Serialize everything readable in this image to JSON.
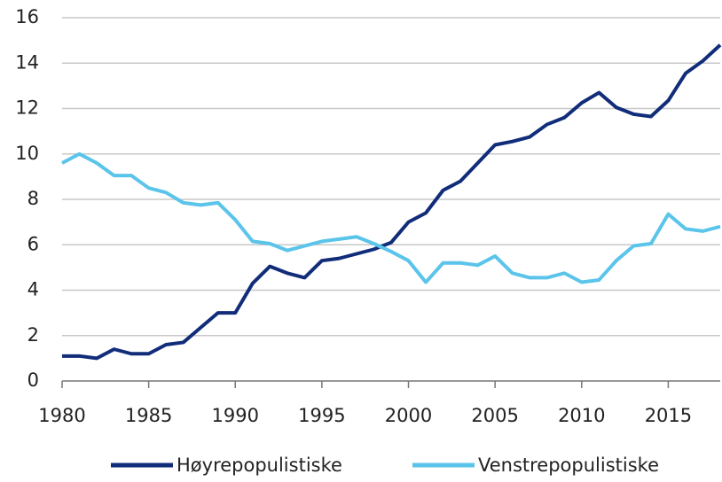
{
  "chart_data": {
    "type": "line",
    "x": [
      1980,
      1981,
      1982,
      1983,
      1984,
      1985,
      1986,
      1987,
      1988,
      1989,
      1990,
      1991,
      1992,
      1993,
      1994,
      1995,
      1996,
      1997,
      1998,
      1999,
      2000,
      2001,
      2002,
      2003,
      2004,
      2005,
      2006,
      2007,
      2008,
      2009,
      2010,
      2011,
      2012,
      2013,
      2014,
      2015,
      2016,
      2017,
      2018
    ],
    "series": [
      {
        "name": "Høyrepopulistiske",
        "color": "#112d7a",
        "values": [
          1.1,
          1.1,
          1.0,
          1.4,
          1.2,
          1.2,
          1.6,
          1.7,
          2.35,
          3.0,
          3.0,
          4.3,
          5.05,
          4.75,
          4.55,
          5.3,
          5.4,
          5.6,
          5.8,
          6.1,
          7.0,
          7.4,
          8.4,
          8.8,
          9.6,
          10.4,
          10.55,
          10.75,
          11.3,
          11.6,
          12.25,
          12.7,
          12.05,
          11.75,
          11.65,
          12.35,
          13.55,
          14.1,
          14.8
        ]
      },
      {
        "name": "Venstrepopulistiske",
        "color": "#5bc4ea",
        "values": [
          9.6,
          10.0,
          9.6,
          9.05,
          9.05,
          8.5,
          8.3,
          7.85,
          7.75,
          7.85,
          7.1,
          6.15,
          6.05,
          5.75,
          5.95,
          6.15,
          6.25,
          6.35,
          6.05,
          5.7,
          5.3,
          4.35,
          5.2,
          5.2,
          5.1,
          5.5,
          4.75,
          4.55,
          4.55,
          4.75,
          4.35,
          4.45,
          5.3,
          5.95,
          6.05,
          7.35,
          6.7,
          6.6,
          6.8
        ]
      }
    ],
    "xlim": [
      1980,
      2018
    ],
    "xticks": [
      1980,
      1985,
      1990,
      1995,
      2000,
      2005,
      2010,
      2015
    ],
    "ylim": [
      0,
      16
    ],
    "yticks": [
      0,
      2,
      4,
      6,
      8,
      10,
      12,
      14,
      16
    ],
    "grid": true,
    "legend": "bottom"
  }
}
